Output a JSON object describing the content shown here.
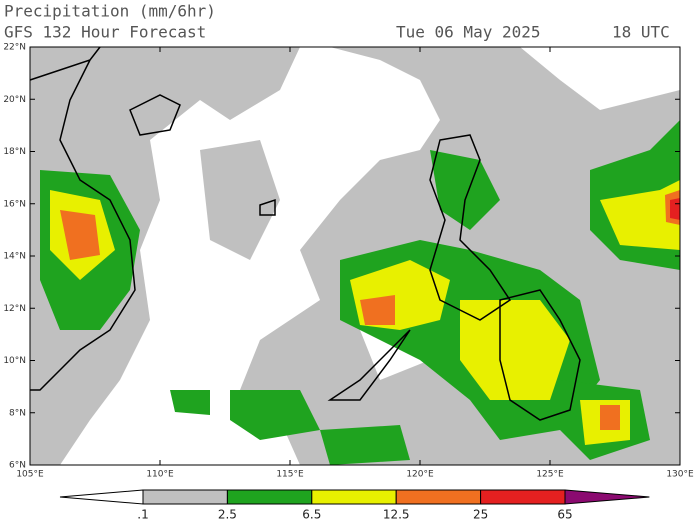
{
  "header": {
    "title": "Precipitation (mm/6hr)",
    "subtitle": "GFS 132 Hour Forecast",
    "date": "Tue 06 May 2025",
    "time": "18 UTC"
  },
  "map": {
    "lat_labels": [
      "22°N",
      "20°N",
      "18°N",
      "16°N",
      "14°N",
      "12°N",
      "10°N",
      "8°N",
      "6°N"
    ],
    "lon_labels": [
      "105°E",
      "110°E",
      "115°E",
      "120°E",
      "125°E",
      "130°E"
    ]
  },
  "colorbar": {
    "levels": [
      ".1",
      "2.5",
      "6.5",
      "12.5",
      "25",
      "65"
    ],
    "colors": [
      "#ffffff",
      "#c0c0c0",
      "#1fa31f",
      "#e8f000",
      "#f07020",
      "#e42020",
      "#8b0a70"
    ]
  }
}
